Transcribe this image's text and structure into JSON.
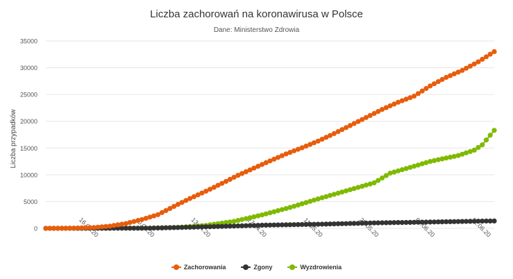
{
  "chart_data": {
    "type": "line",
    "title": "Liczba zachorowań na koronawirusa w Polsce",
    "subtitle": "Dane: Ministerstwo Zdrowia",
    "xlabel": "",
    "ylabel": "Liczba przypadków",
    "ylim": [
      0,
      35000
    ],
    "yticks": [
      0,
      5000,
      10000,
      15000,
      20000,
      25000,
      30000,
      35000
    ],
    "xticks": [
      "16.03.20",
      "30.03.20",
      "13.04.20",
      "27.04.20",
      "11.05.20",
      "25.05.20",
      "08.06.20",
      "22.06.20"
    ],
    "x_start": "2020-03-04",
    "x_end": "2020-06-24",
    "grid": "horizontal",
    "legend_position": "bottom",
    "series": [
      {
        "name": "Zachorowania",
        "color": "#e85d0c",
        "points": [
          [
            "2020-03-04",
            0
          ],
          [
            "2020-03-10",
            20
          ],
          [
            "2020-03-16",
            150
          ],
          [
            "2020-03-20",
            420
          ],
          [
            "2020-03-24",
            900
          ],
          [
            "2020-03-28",
            1640
          ],
          [
            "2020-04-01",
            2550
          ],
          [
            "2020-04-05",
            4100
          ],
          [
            "2020-04-09",
            5580
          ],
          [
            "2020-04-13",
            6930
          ],
          [
            "2020-04-17",
            8400
          ],
          [
            "2020-04-21",
            9900
          ],
          [
            "2020-04-25",
            11250
          ],
          [
            "2020-04-29",
            12600
          ],
          [
            "2020-05-03",
            13900
          ],
          [
            "2020-05-07",
            15050
          ],
          [
            "2020-05-11",
            16300
          ],
          [
            "2020-05-15",
            17700
          ],
          [
            "2020-05-19",
            19200
          ],
          [
            "2020-05-23",
            20700
          ],
          [
            "2020-05-27",
            22200
          ],
          [
            "2020-05-31",
            23550
          ],
          [
            "2020-06-04",
            24700
          ],
          [
            "2020-06-08",
            26600
          ],
          [
            "2020-06-12",
            28200
          ],
          [
            "2020-06-16",
            29500
          ],
          [
            "2020-06-20",
            31100
          ],
          [
            "2020-06-24",
            33000
          ]
        ]
      },
      {
        "name": "Zgony",
        "color": "#333333",
        "points": [
          [
            "2020-03-04",
            0
          ],
          [
            "2020-03-30",
            30
          ],
          [
            "2020-04-13",
            280
          ],
          [
            "2020-04-27",
            580
          ],
          [
            "2020-05-11",
            760
          ],
          [
            "2020-05-25",
            1010
          ],
          [
            "2020-06-08",
            1180
          ],
          [
            "2020-06-24",
            1380
          ]
        ]
      },
      {
        "name": "Wyzdrowienia",
        "color": "#7fba00",
        "points": [
          [
            "2020-03-04",
            0
          ],
          [
            "2020-03-30",
            50
          ],
          [
            "2020-04-06",
            180
          ],
          [
            "2020-04-13",
            550
          ],
          [
            "2020-04-20",
            1300
          ],
          [
            "2020-04-27",
            2500
          ],
          [
            "2020-05-04",
            3900
          ],
          [
            "2020-05-11",
            5500
          ],
          [
            "2020-05-18",
            7000
          ],
          [
            "2020-05-25",
            8500
          ],
          [
            "2020-05-27",
            9400
          ],
          [
            "2020-05-29",
            10300
          ],
          [
            "2020-06-04",
            11600
          ],
          [
            "2020-06-08",
            12500
          ],
          [
            "2020-06-15",
            13600
          ],
          [
            "2020-06-19",
            14600
          ],
          [
            "2020-06-21",
            15600
          ],
          [
            "2020-06-24",
            18300
          ]
        ]
      }
    ]
  }
}
